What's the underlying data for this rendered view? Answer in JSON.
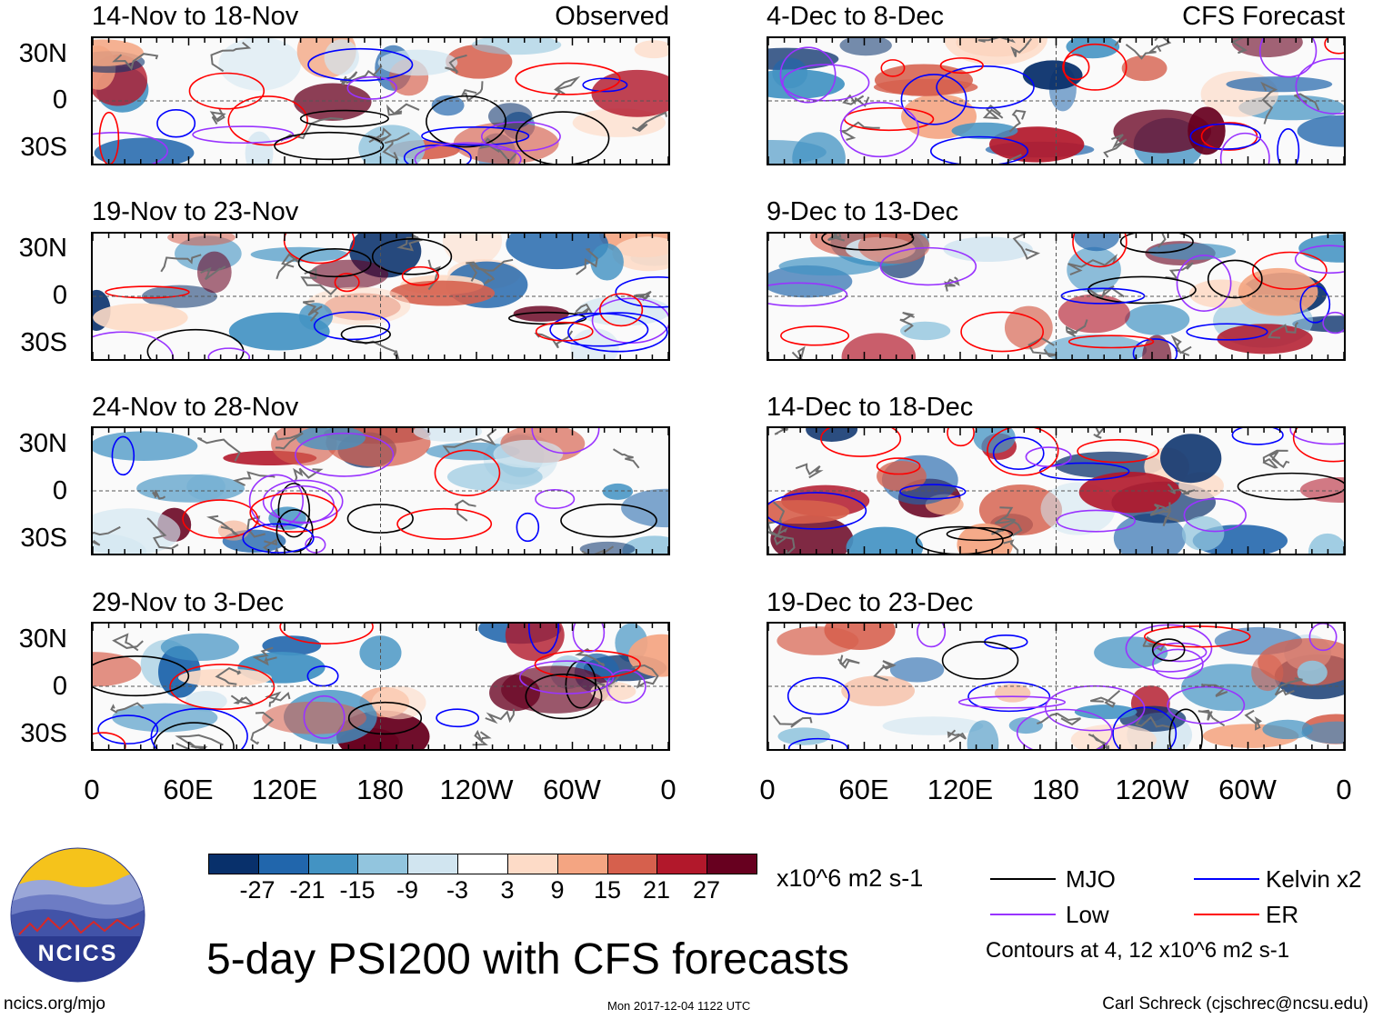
{
  "panels": {
    "observed": [
      {
        "title": "14-Nov to 18-Nov",
        "type_label": "Observed"
      },
      {
        "title": "19-Nov to 23-Nov"
      },
      {
        "title": "24-Nov to 28-Nov"
      },
      {
        "title": "29-Nov to 3-Dec"
      }
    ],
    "forecast": [
      {
        "title": "4-Dec to 8-Dec",
        "type_label": "CFS Forecast"
      },
      {
        "title": "9-Dec to 13-Dec"
      },
      {
        "title": "14-Dec to 18-Dec"
      },
      {
        "title": "19-Dec to 23-Dec"
      }
    ]
  },
  "lat_labels": [
    "30N",
    "0",
    "30S"
  ],
  "lon_labels": [
    "0",
    "60E",
    "120E",
    "180",
    "120W",
    "60W",
    "0"
  ],
  "colorbar": {
    "labels": [
      "-27",
      "-21",
      "-15",
      "-9",
      "-3",
      "3",
      "9",
      "15",
      "21",
      "27"
    ],
    "colors": [
      "#08306b",
      "#2166ac",
      "#4393c3",
      "#92c5de",
      "#d1e5f0",
      "#ffffff",
      "#fddbc7",
      "#f4a582",
      "#d6604d",
      "#b2182b",
      "#67001f"
    ],
    "units": "x10^6 m2 s-1"
  },
  "legend": {
    "items": [
      {
        "label": "MJO",
        "color": "#000000"
      },
      {
        "label": "Kelvin x2",
        "color": "#0000ff"
      },
      {
        "label": "Low",
        "color": "#9933ff"
      },
      {
        "label": "ER",
        "color": "#ff0000"
      }
    ],
    "contours_note": "Contours at 4, 12 x10^6 m2 s-1"
  },
  "title": "5-day PSI200 with CFS forecasts",
  "logo_text": "NCICS",
  "footer": {
    "left": "ncics.org/mjo",
    "center": "Mon 2017-12-04 1122 UTC",
    "right": "Carl Schreck (cjschrec@ncsu.edu)"
  }
}
